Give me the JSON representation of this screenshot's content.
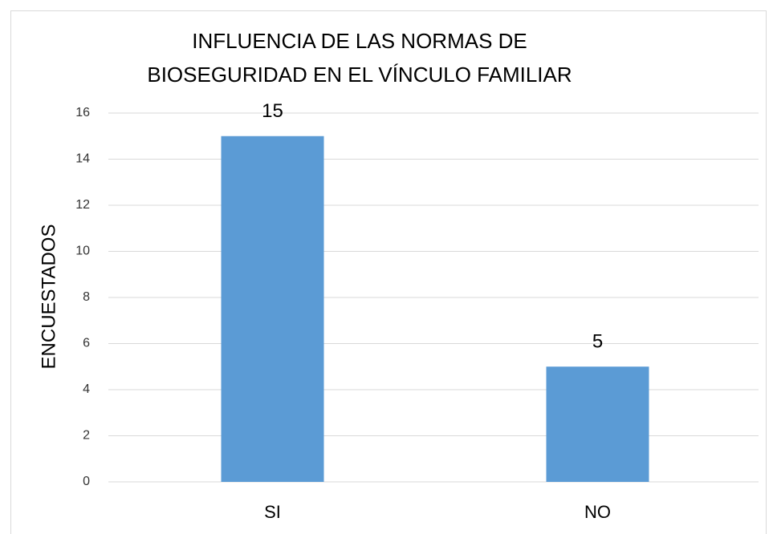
{
  "chart_data": {
    "type": "bar",
    "title": [
      "INFLUENCIA DE LAS NORMAS DE",
      "BIOSEGURIDAD EN EL VÍNCULO FAMILIAR"
    ],
    "ylabel": "ENCUESTADOS",
    "categories": [
      "SI",
      "NO"
    ],
    "values": [
      15,
      5
    ],
    "color": "#5b9bd5",
    "ylim": [
      0,
      16
    ],
    "yticks": [
      0,
      2,
      4,
      6,
      8,
      10,
      12,
      14,
      16
    ],
    "grid": true
  }
}
